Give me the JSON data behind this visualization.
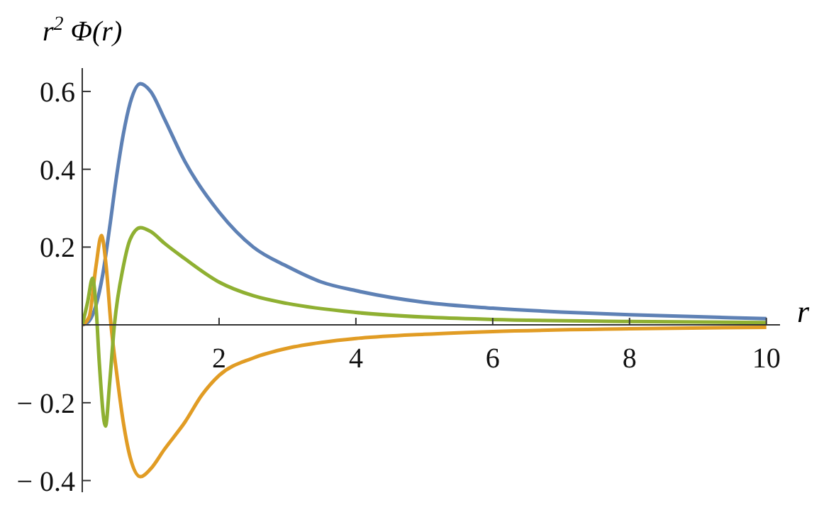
{
  "chart_data": {
    "type": "line",
    "ylabel": "r$^{2}$ Φ(r)",
    "xlabel": "r",
    "xlim": [
      0,
      10.2
    ],
    "ylim": [
      -0.43,
      0.66
    ],
    "xticks": [
      2,
      4,
      6,
      8,
      10
    ],
    "yticks": [
      -0.4,
      -0.2,
      {
        "value": 0,
        "label": null
      },
      0.2,
      0.4,
      0.6
    ],
    "grid": false,
    "legend": false,
    "marker": "none",
    "line_style": "solid",
    "series": [
      {
        "color": "#5e81b5",
        "x": [
          0,
          0.1,
          0.2,
          0.3,
          0.4,
          0.5,
          0.6,
          0.7,
          0.85,
          1,
          1.2,
          1.5,
          2,
          2.5,
          3,
          3.5,
          4,
          5,
          6,
          7,
          8,
          9,
          10
        ],
        "values": [
          0,
          0.01,
          0.05,
          0.13,
          0.25,
          0.38,
          0.49,
          0.57,
          0.62,
          0.6,
          0.53,
          0.42,
          0.29,
          0.2,
          0.15,
          0.11,
          0.088,
          0.058,
          0.043,
          0.033,
          0.026,
          0.021,
          0.016
        ]
      },
      {
        "color": "#e19c24",
        "x": [
          0,
          0.1,
          0.2,
          0.28,
          0.35,
          0.42,
          0.5,
          0.6,
          0.7,
          0.85,
          1,
          1.2,
          1.5,
          1.75,
          2,
          2.5,
          3,
          3.5,
          4,
          5,
          6,
          8,
          10
        ],
        "values": [
          0,
          0.02,
          0.15,
          0.23,
          0.15,
          0,
          -0.12,
          -0.25,
          -0.34,
          -0.39,
          -0.37,
          -0.32,
          -0.25,
          -0.18,
          -0.13,
          -0.085,
          -0.06,
          -0.045,
          -0.035,
          -0.024,
          -0.017,
          -0.01,
          -0.006
        ]
      },
      {
        "color": "#8fb032",
        "x": [
          0,
          0.08,
          0.15,
          0.2,
          0.25,
          0.34,
          0.4,
          0.47,
          0.6,
          0.7,
          0.85,
          1,
          1.2,
          1.5,
          2,
          2.5,
          3,
          4,
          5,
          6,
          8,
          10
        ],
        "values": [
          0,
          0.06,
          0.12,
          0.05,
          -0.1,
          -0.26,
          -0.15,
          0,
          0.15,
          0.22,
          0.25,
          0.24,
          0.21,
          0.17,
          0.11,
          0.075,
          0.055,
          0.032,
          0.02,
          0.014,
          0.009,
          0.006
        ]
      }
    ]
  }
}
